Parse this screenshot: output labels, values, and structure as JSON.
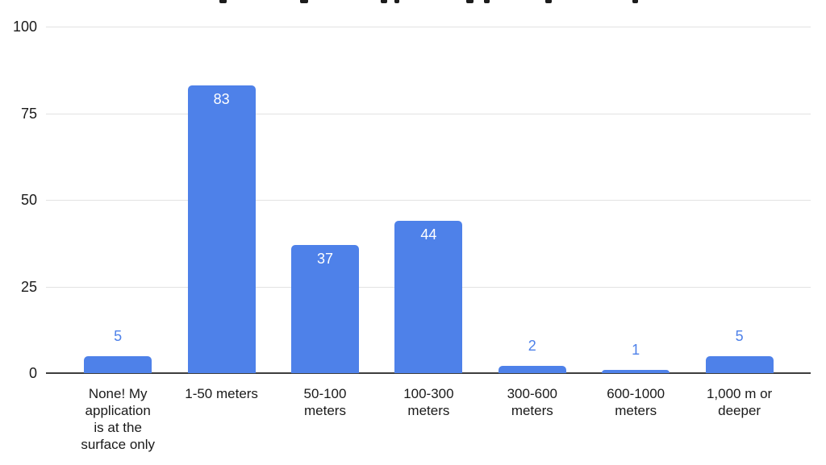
{
  "chart_data": {
    "type": "bar",
    "categories": [
      "None! My application is at the surface only",
      "1-50 meters",
      "50-100 meters",
      "100-300 meters",
      "300-600 meters",
      "600-1000 meters",
      "1,000 m or deeper"
    ],
    "category_label_lines": [
      [
        "None! My",
        "application",
        "is at the",
        "surface only"
      ],
      [
        "1-50 meters"
      ],
      [
        "50-100",
        "meters"
      ],
      [
        "100-300",
        "meters"
      ],
      [
        "300-600",
        "meters"
      ],
      [
        "600-1000",
        "meters"
      ],
      [
        "1,000 m or",
        "deeper"
      ]
    ],
    "values": [
      5,
      83,
      37,
      44,
      2,
      1,
      5
    ],
    "value_labels": [
      "5",
      "83",
      "37",
      "44",
      "2",
      "1",
      "5"
    ],
    "value_label_placement": [
      "above",
      "inside",
      "inside",
      "inside",
      "above",
      "above",
      "above"
    ],
    "ylim": [
      0,
      100
    ],
    "yticks": [
      0,
      25,
      50,
      75,
      100
    ],
    "grid": true,
    "legend": "none",
    "title_cropped_out_of_frame": true,
    "colors": {
      "bar": "#4e81e9",
      "value_label_inside": "#ffffff",
      "value_label_outside": "#4e81e9",
      "axis_text": "#1a1a1a",
      "gridline": "#e3e3e3",
      "axis_line": "#3d3d3d",
      "background": "#ffffff"
    }
  }
}
